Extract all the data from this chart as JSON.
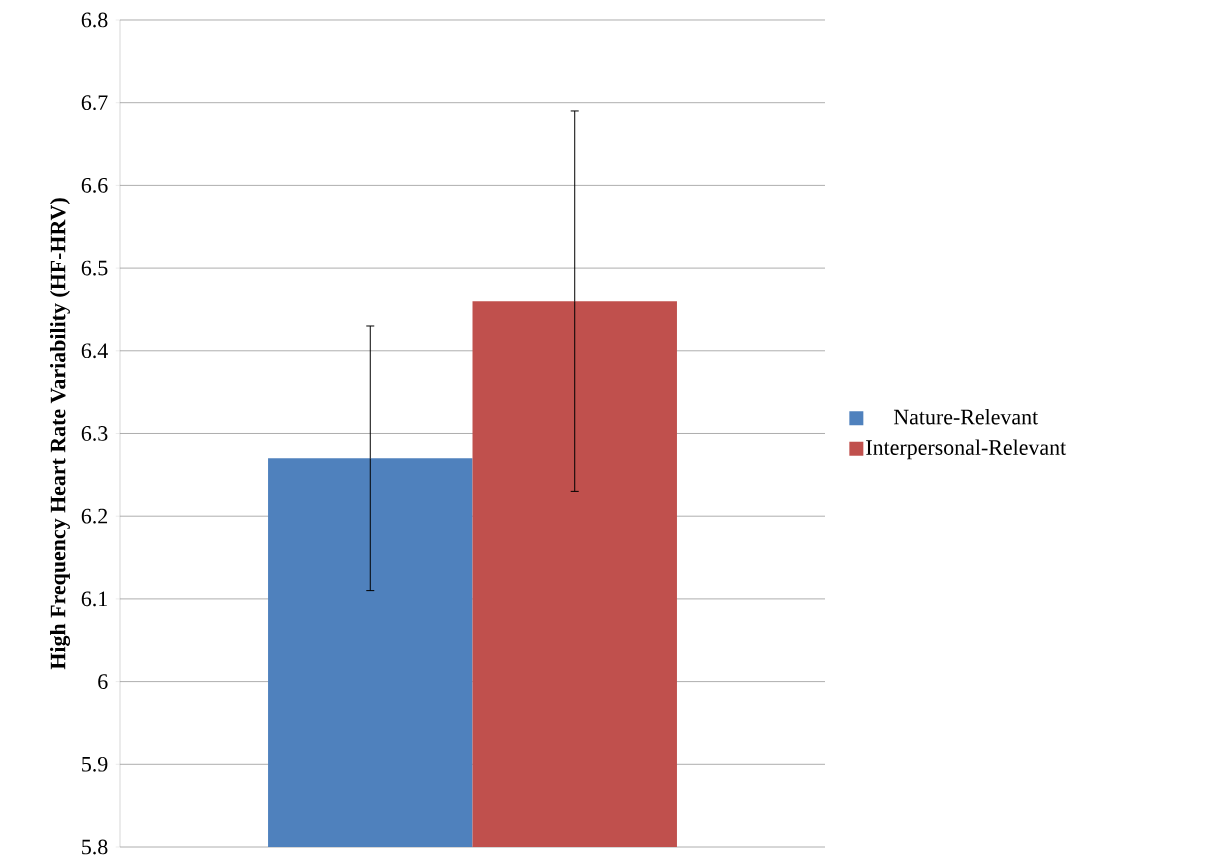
{
  "chart_data": {
    "type": "bar",
    "ylabel": "High Frequency Heart Rate Variability (HF-HRV)",
    "categories": [
      null
    ],
    "series": [
      {
        "name": "Nature-Relevant",
        "color": "#4f81bd",
        "values": [
          6.27
        ],
        "errors": [
          0.16
        ]
      },
      {
        "name": "Interpersonal-Relevant",
        "color": "#c0504d",
        "values": [
          6.46
        ],
        "errors": [
          0.23
        ]
      }
    ],
    "ylim": [
      5.8,
      6.8
    ],
    "yticks": [
      5.8,
      5.9,
      6,
      6.1,
      6.2,
      6.3,
      6.4,
      6.5,
      6.6,
      6.7,
      6.8
    ],
    "grid": "y",
    "legend": "right"
  }
}
